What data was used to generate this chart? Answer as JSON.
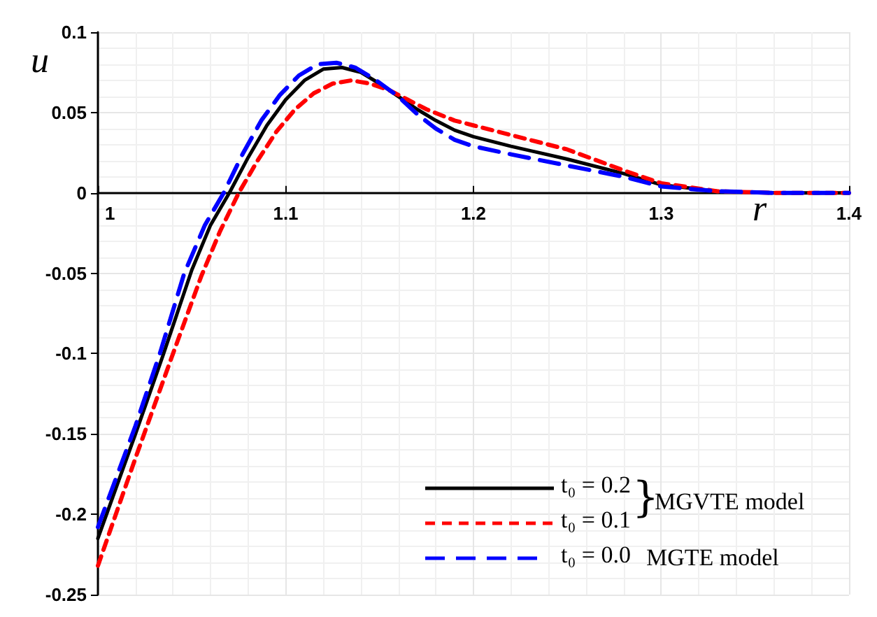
{
  "chart_data": {
    "type": "line",
    "xlabel": "r",
    "ylabel": "u",
    "xlim": [
      1,
      1.4
    ],
    "xticks": [
      1,
      1.1,
      1.2,
      1.3,
      1.4
    ],
    "ylim": [
      -0.25,
      0.1
    ],
    "yticks": [
      -0.25,
      -0.2,
      -0.15,
      -0.1,
      -0.05,
      0,
      0.05,
      0.1
    ],
    "grid": true,
    "legend": "bottom right",
    "marker": "none",
    "series": [
      {
        "name": "t₀ = 0.2",
        "color": "#000000",
        "line_style": "solid",
        "x": [
          1,
          1.02,
          1.035,
          1.05,
          1.06,
          1.07,
          1.08,
          1.09,
          1.1,
          1.11,
          1.12,
          1.13,
          1.14,
          1.15,
          1.16,
          1.17,
          1.18,
          1.19,
          1.2,
          1.22,
          1.25,
          1.28,
          1.3,
          1.33,
          1.36,
          1.4
        ],
        "values": [
          -0.215,
          -0.15,
          -0.1,
          -0.048,
          -0.02,
          0,
          0.022,
          0.042,
          0.058,
          0.07,
          0.077,
          0.078,
          0.075,
          0.068,
          0.06,
          0.052,
          0.045,
          0.039,
          0.035,
          0.029,
          0.021,
          0.012,
          0.005,
          0.001,
          0,
          0
        ]
      },
      {
        "name": "t₀ = 0.1",
        "color": "#ff0000",
        "line_style": "dashed",
        "x": [
          1,
          1.02,
          1.04,
          1.055,
          1.065,
          1.075,
          1.085,
          1.095,
          1.105,
          1.115,
          1.125,
          1.135,
          1.145,
          1.155,
          1.165,
          1.175,
          1.19,
          1.2,
          1.22,
          1.25,
          1.28,
          1.3,
          1.33,
          1.36,
          1.4
        ],
        "values": [
          -0.232,
          -0.165,
          -0.1,
          -0.052,
          -0.024,
          0,
          0.02,
          0.038,
          0.052,
          0.062,
          0.068,
          0.07,
          0.068,
          0.064,
          0.058,
          0.052,
          0.045,
          0.042,
          0.036,
          0.027,
          0.014,
          0.006,
          0.001,
          0,
          0
        ]
      },
      {
        "name": "t₀ = 0.0",
        "color": "#0000ff",
        "line_style": "dashed",
        "x": [
          1,
          1.02,
          1.033,
          1.046,
          1.057,
          1.067,
          1.077,
          1.087,
          1.097,
          1.107,
          1.117,
          1.127,
          1.137,
          1.147,
          1.16,
          1.17,
          1.18,
          1.19,
          1.2,
          1.22,
          1.25,
          1.28,
          1.3,
          1.33,
          1.36,
          1.4
        ],
        "values": [
          -0.208,
          -0.145,
          -0.1,
          -0.05,
          -0.02,
          0,
          0.024,
          0.045,
          0.061,
          0.073,
          0.08,
          0.081,
          0.078,
          0.071,
          0.06,
          0.049,
          0.04,
          0.033,
          0.029,
          0.024,
          0.017,
          0.01,
          0.004,
          0.001,
          0,
          0
        ]
      }
    ],
    "annotations": [
      "}",
      "MGVTE model",
      "MGTE model"
    ]
  }
}
